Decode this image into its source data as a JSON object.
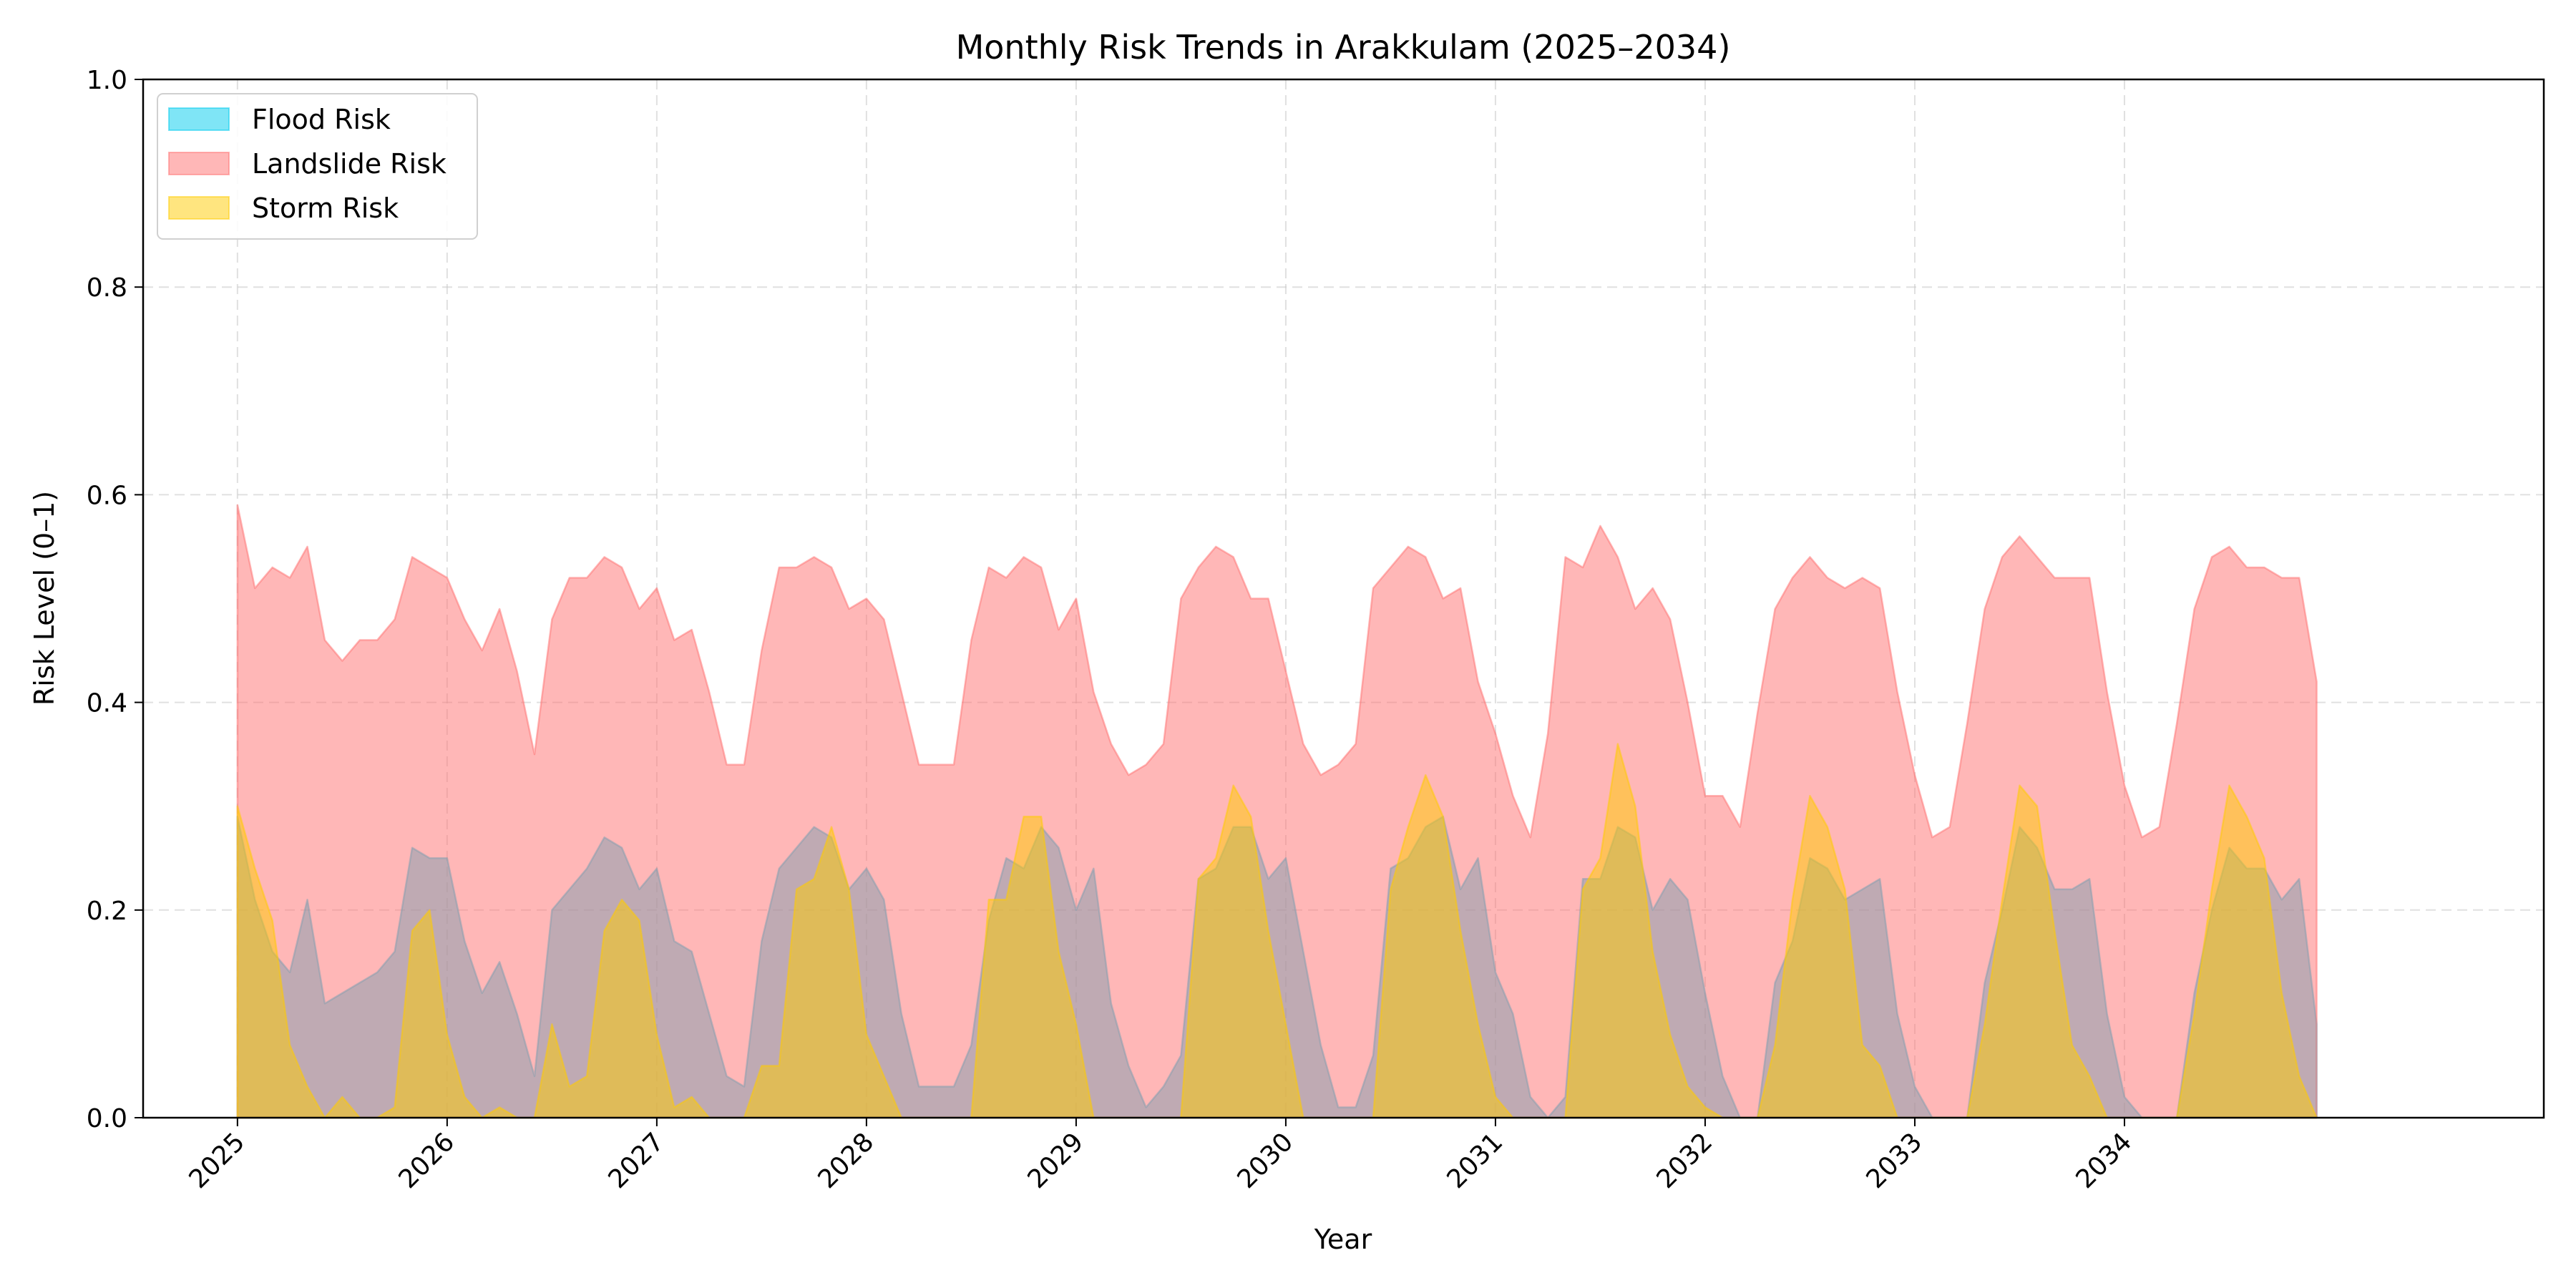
{
  "chart_data": {
    "type": "area",
    "title": "Monthly Risk Trends in Arakkulam (2025–2034)",
    "xlabel": "Year",
    "ylabel": "Risk Level (0–1)",
    "xlim": [
      2024.55,
      2036.0
    ],
    "ylim": [
      0.0,
      1.0
    ],
    "x_ticks": [
      2025,
      2026,
      2027,
      2028,
      2029,
      2030,
      2031,
      2032,
      2033,
      2034
    ],
    "x_tick_labels": [
      "2025",
      "2026",
      "2027",
      "2028",
      "2029",
      "2030",
      "2031",
      "2032",
      "2033",
      "2034"
    ],
    "y_ticks": [
      0.0,
      0.2,
      0.4,
      0.6,
      0.8,
      1.0
    ],
    "y_tick_labels": [
      "0.0",
      "0.2",
      "0.4",
      "0.6",
      "0.8",
      "1.0"
    ],
    "grid": true,
    "legend_position": "top-left",
    "x_start": "2025-01",
    "x_step": "1 month",
    "series": [
      {
        "name": "Flood Risk",
        "color": "#00ccee",
        "values": [
          0.29,
          0.21,
          0.16,
          0.14,
          0.21,
          0.11,
          0.12,
          0.13,
          0.14,
          0.16,
          0.26,
          0.25,
          0.25,
          0.17,
          0.12,
          0.15,
          0.1,
          0.04,
          0.2,
          0.22,
          0.24,
          0.27,
          0.26,
          0.22,
          0.24,
          0.17,
          0.16,
          0.1,
          0.04,
          0.03,
          0.17,
          0.24,
          0.26,
          0.28,
          0.27,
          0.22,
          0.24,
          0.21,
          0.1,
          0.03,
          0.03,
          0.03,
          0.07,
          0.19,
          0.25,
          0.24,
          0.28,
          0.26,
          0.2,
          0.24,
          0.11,
          0.05,
          0.01,
          0.03,
          0.06,
          0.23,
          0.24,
          0.28,
          0.28,
          0.23,
          0.25,
          0.16,
          0.07,
          0.01,
          0.01,
          0.06,
          0.24,
          0.25,
          0.28,
          0.29,
          0.22,
          0.25,
          0.14,
          0.1,
          0.02,
          0.0,
          0.02,
          0.23,
          0.23,
          0.28,
          0.27,
          0.2,
          0.23,
          0.21,
          0.12,
          0.04,
          0.0,
          0.0,
          0.13,
          0.17,
          0.25,
          0.24,
          0.21,
          0.22,
          0.23,
          0.1,
          0.03,
          0.0,
          0.0,
          0.0,
          0.13,
          0.2,
          0.28,
          0.26,
          0.22,
          0.22,
          0.23,
          0.1,
          0.02,
          0.0,
          0.0,
          0.0,
          0.12,
          0.2,
          0.26,
          0.24,
          0.24,
          0.21,
          0.23,
          0.09
        ]
      },
      {
        "name": "Landslide Risk",
        "color": "#ff7070",
        "values": [
          0.59,
          0.51,
          0.53,
          0.52,
          0.55,
          0.46,
          0.44,
          0.46,
          0.46,
          0.48,
          0.54,
          0.53,
          0.52,
          0.48,
          0.45,
          0.49,
          0.43,
          0.35,
          0.48,
          0.52,
          0.52,
          0.54,
          0.53,
          0.49,
          0.51,
          0.46,
          0.47,
          0.41,
          0.34,
          0.34,
          0.45,
          0.53,
          0.53,
          0.54,
          0.53,
          0.49,
          0.5,
          0.48,
          0.41,
          0.34,
          0.34,
          0.34,
          0.46,
          0.53,
          0.52,
          0.54,
          0.53,
          0.47,
          0.5,
          0.41,
          0.36,
          0.33,
          0.34,
          0.36,
          0.5,
          0.53,
          0.55,
          0.54,
          0.5,
          0.5,
          0.43,
          0.36,
          0.33,
          0.34,
          0.36,
          0.51,
          0.53,
          0.55,
          0.54,
          0.5,
          0.51,
          0.42,
          0.37,
          0.31,
          0.27,
          0.37,
          0.54,
          0.53,
          0.57,
          0.54,
          0.49,
          0.51,
          0.48,
          0.4,
          0.31,
          0.31,
          0.28,
          0.39,
          0.49,
          0.52,
          0.54,
          0.52,
          0.51,
          0.52,
          0.51,
          0.41,
          0.33,
          0.27,
          0.28,
          0.38,
          0.49,
          0.54,
          0.56,
          0.54,
          0.52,
          0.52,
          0.52,
          0.41,
          0.32,
          0.27,
          0.28,
          0.38,
          0.49,
          0.54,
          0.55,
          0.53,
          0.53,
          0.52,
          0.52,
          0.42
        ]
      },
      {
        "name": "Storm Risk",
        "color": "#ffcc00",
        "values": [
          0.3,
          0.24,
          0.19,
          0.07,
          0.03,
          0.0,
          0.02,
          0.0,
          0.0,
          0.01,
          0.18,
          0.2,
          0.08,
          0.02,
          0.0,
          0.01,
          0.0,
          0.0,
          0.09,
          0.03,
          0.04,
          0.18,
          0.21,
          0.19,
          0.08,
          0.01,
          0.02,
          0.0,
          0.0,
          0.0,
          0.05,
          0.05,
          0.22,
          0.23,
          0.28,
          0.22,
          0.08,
          0.04,
          0.0,
          0.0,
          0.0,
          0.0,
          0.0,
          0.21,
          0.21,
          0.29,
          0.29,
          0.16,
          0.09,
          0.0,
          0.0,
          0.0,
          0.0,
          0.0,
          0.0,
          0.23,
          0.25,
          0.32,
          0.29,
          0.18,
          0.09,
          0.0,
          0.0,
          0.0,
          0.0,
          0.0,
          0.22,
          0.28,
          0.33,
          0.29,
          0.18,
          0.09,
          0.02,
          0.0,
          0.0,
          0.0,
          0.0,
          0.22,
          0.25,
          0.36,
          0.3,
          0.16,
          0.08,
          0.03,
          0.01,
          0.0,
          0.0,
          0.0,
          0.07,
          0.21,
          0.31,
          0.28,
          0.22,
          0.07,
          0.05,
          0.0,
          0.0,
          0.0,
          0.0,
          0.0,
          0.09,
          0.21,
          0.32,
          0.3,
          0.18,
          0.07,
          0.04,
          0.0,
          0.0,
          0.0,
          0.0,
          0.0,
          0.1,
          0.22,
          0.32,
          0.29,
          0.25,
          0.12,
          0.04,
          0.0
        ]
      }
    ]
  }
}
